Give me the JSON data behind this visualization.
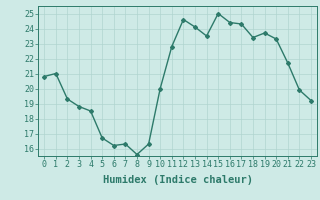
{
  "x": [
    0,
    1,
    2,
    3,
    4,
    5,
    6,
    7,
    8,
    9,
    10,
    11,
    12,
    13,
    14,
    15,
    16,
    17,
    18,
    19,
    20,
    21,
    22,
    23
  ],
  "y": [
    20.8,
    21.0,
    19.3,
    18.8,
    18.5,
    16.7,
    16.2,
    16.3,
    15.6,
    16.3,
    20.0,
    22.8,
    24.6,
    24.1,
    23.5,
    25.0,
    24.4,
    24.3,
    23.4,
    23.7,
    23.3,
    21.7,
    19.9,
    19.2
  ],
  "line_color": "#2d7a6a",
  "bg_color": "#ceeae6",
  "grid_color": "#b0d5d0",
  "xlabel": "Humidex (Indice chaleur)",
  "ylim": [
    15.5,
    25.5
  ],
  "yticks": [
    16,
    17,
    18,
    19,
    20,
    21,
    22,
    23,
    24,
    25
  ],
  "xticks": [
    0,
    1,
    2,
    3,
    4,
    5,
    6,
    7,
    8,
    9,
    10,
    11,
    12,
    13,
    14,
    15,
    16,
    17,
    18,
    19,
    20,
    21,
    22,
    23
  ],
  "marker": "D",
  "marker_size": 2.0,
  "line_width": 1.0,
  "xlabel_fontsize": 7.5,
  "tick_fontsize": 6.0
}
